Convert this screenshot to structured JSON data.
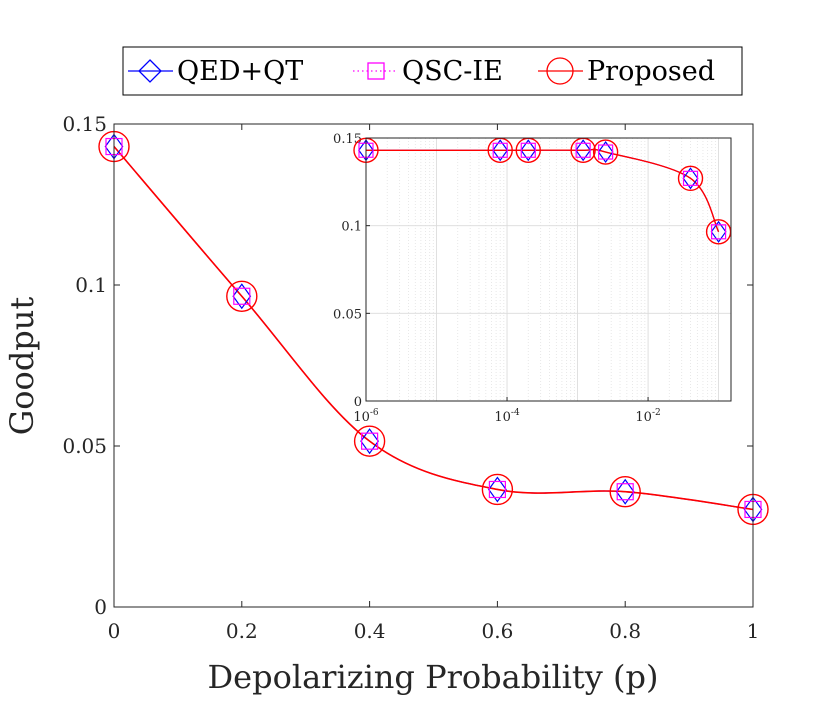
{
  "chart_data": [
    {
      "id": "main",
      "type": "line",
      "xlabel": "Depolarizing Probability (p)",
      "ylabel": "Goodput",
      "xlim": [
        0,
        1
      ],
      "ylim": [
        0,
        0.15
      ],
      "xscale": "linear",
      "grid": false,
      "x_ticks": [
        0,
        0.2,
        0.4,
        0.6,
        0.8,
        1
      ],
      "x_tick_labels": [
        "0",
        "0.2",
        "0.4",
        "0.6",
        "0.8",
        "1"
      ],
      "y_ticks": [
        0,
        0.05,
        0.1,
        0.15
      ],
      "y_tick_labels": [
        "0",
        "0.05",
        "0.1",
        "0.15"
      ],
      "x": [
        0,
        0.2,
        0.4,
        0.6,
        0.8,
        1
      ],
      "series": [
        {
          "name": "QED+QT",
          "values": [
            0.143,
            0.0965,
            0.0515,
            0.0365,
            0.0358,
            0.0303
          ]
        },
        {
          "name": "QSC-IE",
          "values": [
            0.143,
            0.0965,
            0.0515,
            0.0365,
            0.0358,
            0.0303
          ]
        },
        {
          "name": "Proposed",
          "values": [
            0.143,
            0.0965,
            0.0515,
            0.0365,
            0.0358,
            0.0303
          ]
        }
      ]
    },
    {
      "id": "inset",
      "type": "line",
      "xlim": [
        1e-06,
        0.15
      ],
      "ylim": [
        0,
        0.15
      ],
      "xscale": "log",
      "grid": true,
      "x_ticks": [
        1e-06,
        0.0001,
        0.01
      ],
      "x_tick_labels": [
        "10^-6",
        "10^-4",
        "10^-2"
      ],
      "y_ticks": [
        0,
        0.05,
        0.1,
        0.15
      ],
      "y_tick_labels": [
        "0",
        "0.05",
        "0.1",
        "0.15"
      ],
      "x": [
        1e-06,
        8e-05,
        0.0002,
        0.0012,
        0.0025,
        0.04,
        0.1
      ],
      "series": [
        {
          "name": "QED+QT",
          "values": [
            0.143,
            0.143,
            0.143,
            0.143,
            0.142,
            0.127,
            0.0965
          ]
        },
        {
          "name": "QSC-IE",
          "values": [
            0.143,
            0.143,
            0.143,
            0.143,
            0.142,
            0.127,
            0.0965
          ]
        },
        {
          "name": "Proposed",
          "values": [
            0.143,
            0.143,
            0.143,
            0.143,
            0.142,
            0.127,
            0.0965
          ]
        }
      ]
    }
  ],
  "legend": {
    "position": "top-center",
    "items": [
      {
        "label": "QED+QT",
        "color": "#0000ff",
        "marker": "diamond",
        "line": "solid"
      },
      {
        "label": "QSC-IE",
        "color": "#ff00ff",
        "marker": "square",
        "line": "dotted"
      },
      {
        "label": "Proposed",
        "color": "#ff0000",
        "marker": "circle",
        "line": "solid"
      }
    ]
  }
}
